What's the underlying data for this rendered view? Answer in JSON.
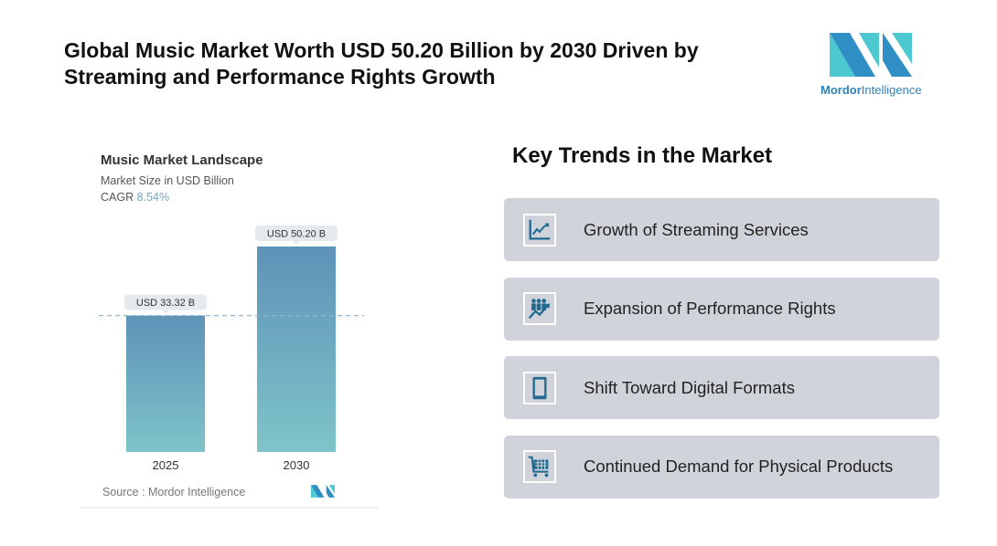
{
  "title": "Global Music Market Worth USD 50.20 Billion by 2030 Driven by Streaming and Performance Rights Growth",
  "logo": {
    "text_bold": "Mordor",
    "text_light": "Intelligence"
  },
  "chart_data": {
    "type": "bar",
    "title": "Music Market Landscape",
    "subtitle": "Market Size in USD Billion",
    "cagr_label": "CAGR",
    "cagr_value": "8.54%",
    "categories": [
      "2025",
      "2030"
    ],
    "values": [
      33.32,
      50.2
    ],
    "data_labels": [
      "USD 33.32 B",
      "USD 50.20 B"
    ],
    "colors": {
      "bar_top": "#5e92b8",
      "bar_bottom": "#7fc4c9"
    },
    "source": "Source :  Mordor Intelligence"
  },
  "trends": {
    "heading": "Key Trends in the Market",
    "items": [
      {
        "label": "Growth of Streaming Services",
        "icon": "line-chart-icon"
      },
      {
        "label": "Expansion of Performance Rights",
        "icon": "people-growth-icon"
      },
      {
        "label": "Shift Toward Digital Formats",
        "icon": "smartphone-icon"
      },
      {
        "label": "Continued Demand for Physical Products",
        "icon": "shopping-cart-icon"
      }
    ]
  }
}
